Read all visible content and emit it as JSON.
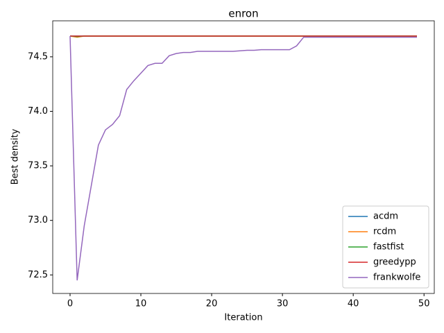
{
  "chart_data": {
    "type": "line",
    "title": "enron",
    "x_label": "Iteration",
    "y_label": "Best density",
    "x": [
      0,
      1,
      2,
      3,
      4,
      5,
      6,
      7,
      8,
      9,
      10,
      11,
      12,
      13,
      14,
      15,
      16,
      17,
      18,
      19,
      20,
      21,
      22,
      23,
      24,
      25,
      26,
      27,
      28,
      29,
      30,
      31,
      32,
      33,
      34,
      35,
      36,
      37,
      38,
      39,
      40,
      41,
      42,
      43,
      44,
      45,
      46,
      47,
      48,
      49
    ],
    "series": [
      {
        "name": "acdm",
        "color": "#1f77b4",
        "values": [
          74.69,
          74.69,
          74.69,
          74.69,
          74.69,
          74.69,
          74.69,
          74.69,
          74.69,
          74.69,
          74.69,
          74.69,
          74.69,
          74.69,
          74.69,
          74.69,
          74.69,
          74.69,
          74.69,
          74.69,
          74.69,
          74.69,
          74.69,
          74.69,
          74.69,
          74.69,
          74.69,
          74.69,
          74.69,
          74.69,
          74.69,
          74.69,
          74.69,
          74.69,
          74.69,
          74.69,
          74.69,
          74.69,
          74.69,
          74.69,
          74.69,
          74.69,
          74.69,
          74.69,
          74.69,
          74.69,
          74.69,
          74.69,
          74.69,
          74.69
        ]
      },
      {
        "name": "rcdm",
        "color": "#ff7f0e",
        "values": [
          74.69,
          74.68,
          74.69,
          74.69,
          74.69,
          74.69,
          74.69,
          74.69,
          74.69,
          74.69,
          74.69,
          74.69,
          74.69,
          74.69,
          74.69,
          74.69,
          74.69,
          74.69,
          74.69,
          74.69,
          74.69,
          74.69,
          74.69,
          74.69,
          74.69,
          74.69,
          74.69,
          74.69,
          74.69,
          74.69,
          74.69,
          74.69,
          74.69,
          74.69,
          74.69,
          74.69,
          74.69,
          74.69,
          74.69,
          74.69,
          74.69,
          74.69,
          74.69,
          74.69,
          74.69,
          74.69,
          74.69,
          74.69,
          74.69,
          74.69
        ]
      },
      {
        "name": "fastfist",
        "color": "#2ca02c",
        "values": [
          74.69,
          74.685,
          74.69,
          74.69,
          74.69,
          74.69,
          74.69,
          74.69,
          74.69,
          74.69,
          74.69,
          74.69,
          74.69,
          74.69,
          74.69,
          74.69,
          74.69,
          74.69,
          74.69,
          74.69,
          74.69,
          74.69,
          74.69,
          74.69,
          74.69,
          74.69,
          74.69,
          74.69,
          74.69,
          74.69,
          74.69,
          74.69,
          74.69,
          74.69,
          74.69,
          74.69,
          74.69,
          74.69,
          74.69,
          74.69,
          74.69,
          74.69,
          74.69,
          74.69,
          74.69,
          74.69,
          74.69,
          74.69,
          74.69,
          74.69
        ]
      },
      {
        "name": "greedypp",
        "color": "#d62728",
        "values": [
          74.69,
          74.69,
          74.69,
          74.69,
          74.69,
          74.69,
          74.69,
          74.69,
          74.69,
          74.69,
          74.69,
          74.69,
          74.69,
          74.69,
          74.69,
          74.69,
          74.69,
          74.69,
          74.69,
          74.69,
          74.69,
          74.69,
          74.69,
          74.69,
          74.69,
          74.69,
          74.69,
          74.69,
          74.69,
          74.69,
          74.69,
          74.69,
          74.69,
          74.69,
          74.69,
          74.69,
          74.69,
          74.69,
          74.69,
          74.69,
          74.69,
          74.69,
          74.69,
          74.69,
          74.69,
          74.69,
          74.69,
          74.69,
          74.69,
          74.69
        ]
      },
      {
        "name": "frankwolfe",
        "color": "#9467bd",
        "values": [
          74.69,
          72.45,
          72.95,
          73.32,
          73.69,
          73.83,
          73.88,
          73.96,
          74.2,
          74.28,
          74.35,
          74.42,
          74.44,
          74.44,
          74.51,
          74.53,
          74.54,
          74.54,
          74.55,
          74.55,
          74.55,
          74.55,
          74.55,
          74.55,
          74.555,
          74.56,
          74.56,
          74.565,
          74.565,
          74.565,
          74.565,
          74.565,
          74.6,
          74.68,
          74.68,
          74.68,
          74.68,
          74.68,
          74.68,
          74.68,
          74.68,
          74.68,
          74.68,
          74.68,
          74.68,
          74.68,
          74.68,
          74.68,
          74.68,
          74.68
        ]
      }
    ],
    "xlim": [
      -2.45,
      51.45
    ],
    "ylim": [
      72.33,
      74.83
    ],
    "xticks": [
      0,
      10,
      20,
      30,
      40,
      50
    ],
    "yticks": [
      72.5,
      {
        "value": 73,
        "label": "73.0"
      },
      73.5,
      {
        "value": 74,
        "label": "74.0"
      },
      74.5
    ],
    "legend": "lower right",
    "grid": false
  }
}
